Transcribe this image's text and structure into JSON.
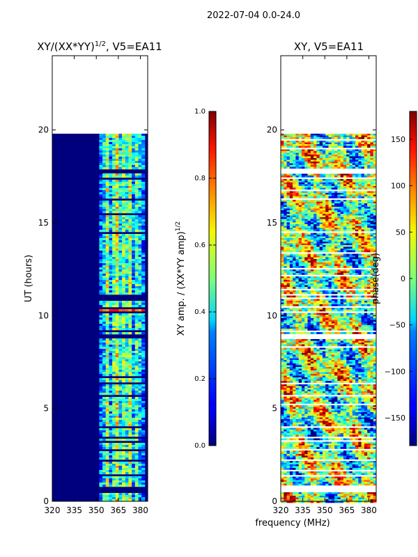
{
  "suptitle": "2022-07-04 0.0-24.0",
  "xlabel": "frequency (MHz)",
  "colors": {
    "background": "#ffffff",
    "no_data": "#ffffff",
    "low": "#00007f"
  },
  "chart_data": [
    {
      "type": "heatmap",
      "title_main": "XY/(XX*YY)",
      "title_exp": "1/2",
      "title_tail": ", V5=EA11",
      "ylabel": "UT (hours)",
      "xlim": [
        320,
        385
      ],
      "ylim": [
        0,
        24
      ],
      "xticks": [
        320,
        335,
        350,
        365,
        380
      ],
      "yticks": [
        0,
        5,
        10,
        15,
        20
      ],
      "data_ut_range": [
        0.0,
        19.8
      ],
      "bright_freq_band_mhz": [
        352,
        383
      ],
      "colorbar": {
        "label_main": "XY amp. / (XX*YY amp)",
        "label_exp": "1/2",
        "range": [
          0.0,
          1.0
        ],
        "ticks": [
          "0.0",
          "0.2",
          "0.4",
          "0.6",
          "0.8",
          "1.0"
        ]
      }
    },
    {
      "type": "heatmap",
      "title": "XY, V5=EA11",
      "xlim": [
        320,
        385
      ],
      "ylim": [
        0,
        24
      ],
      "xticks": [
        320,
        335,
        350,
        365,
        380
      ],
      "yticks": [
        0,
        5,
        10,
        15,
        20
      ],
      "data_ut_range": [
        0.0,
        19.8
      ],
      "colorbar": {
        "label": "phase(deg)",
        "range": [
          -180,
          180
        ],
        "ticks": [
          "150",
          "100",
          "50",
          "0",
          "−50",
          "−100",
          "−150"
        ],
        "tick_values": [
          150,
          100,
          50,
          0,
          -50,
          -100,
          -150
        ]
      }
    }
  ],
  "gaps_ut_hours": [
    0.55,
    0.75,
    1.4,
    1.7,
    2.25,
    2.8,
    3.25,
    3.45,
    3.6,
    4.0,
    5.2,
    5.7,
    6.35,
    6.7,
    8.35,
    8.8,
    9.2,
    10.2,
    10.45,
    10.9,
    11.1,
    11.4,
    12.2,
    12.55,
    13.4,
    14.5,
    15.5,
    16.3,
    16.8,
    17.4,
    17.7,
    17.9,
    19.05,
    19.5
  ],
  "gap_widths_hours": [
    0.18,
    0.12,
    0.08,
    0.06,
    0.08,
    0.06,
    0.1,
    0.05,
    0.06,
    0.07,
    0.08,
    0.05,
    0.07,
    0.06,
    0.07,
    0.3,
    0.06,
    0.12,
    0.1,
    0.15,
    0.1,
    0.06,
    0.06,
    0.05,
    0.08,
    0.06,
    0.06,
    0.08,
    0.05,
    0.1,
    0.25,
    0.08,
    0.06,
    0.06
  ]
}
